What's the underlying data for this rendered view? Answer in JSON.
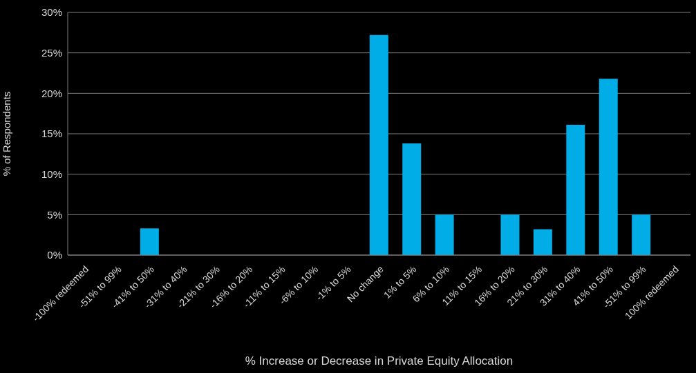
{
  "chart_data": {
    "type": "bar",
    "xlabel": "% Increase or Decrease in Private Equity Allocation",
    "ylabel": "% of Respondents",
    "categories": [
      "-100% redeemed",
      "-51% to 99%",
      "-41% to 50%",
      "-31% to 40%",
      "-21% to 30%",
      "-16% to 20%",
      "-11% to 15%",
      "-6% to 10%",
      "-1% to 5%",
      "No change",
      "1% to 5%",
      "6% to 10%",
      "11% to 15%",
      "16% to 20%",
      "21% to 30%",
      "31% to 40%",
      "41% to 50%",
      "-51% to 99%",
      "100% redeemed"
    ],
    "values": [
      0,
      0,
      3.3,
      0,
      0,
      0,
      0,
      0,
      0,
      27.2,
      13.8,
      5.0,
      0,
      5.0,
      3.2,
      16.1,
      21.8,
      5.0,
      0
    ],
    "color": "#00ade6",
    "ylim": [
      0,
      30
    ],
    "yticks": [
      {
        "value": 0,
        "label": "0%"
      },
      {
        "value": 5,
        "label": "5%"
      },
      {
        "value": 10,
        "label": "10%"
      },
      {
        "value": 15,
        "label": "15%"
      },
      {
        "value": 20,
        "label": "20%"
      },
      {
        "value": 25,
        "label": "25%"
      },
      {
        "value": 30,
        "label": "30%"
      }
    ],
    "grid": "y"
  }
}
